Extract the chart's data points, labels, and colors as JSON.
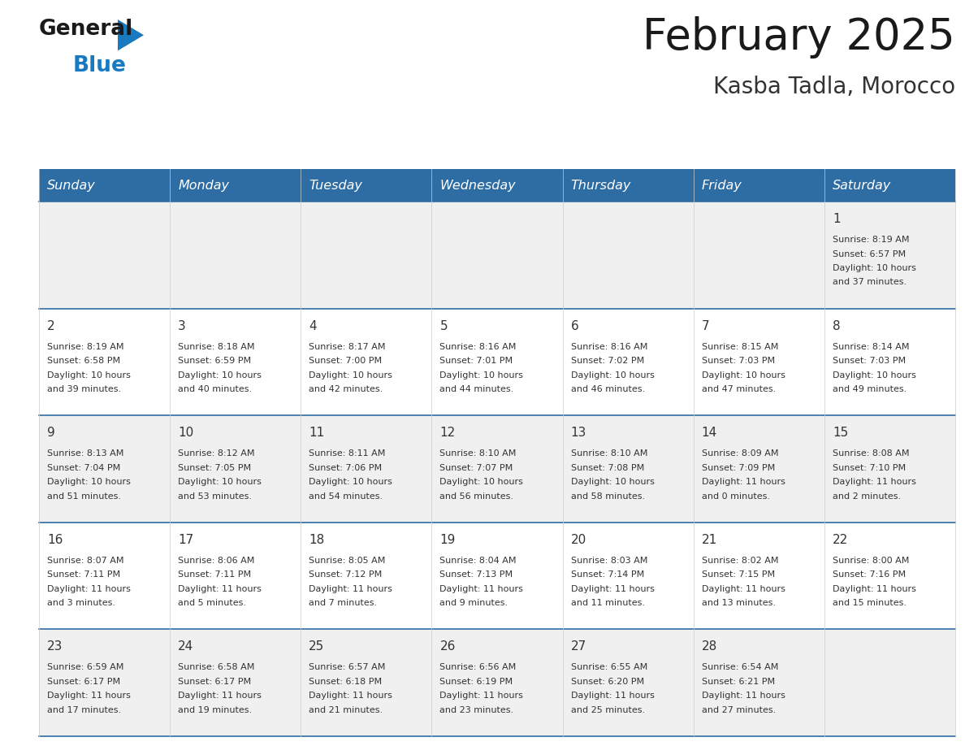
{
  "title": "February 2025",
  "subtitle": "Kasba Tadla, Morocco",
  "days_of_week": [
    "Sunday",
    "Monday",
    "Tuesday",
    "Wednesday",
    "Thursday",
    "Friday",
    "Saturday"
  ],
  "header_bg": "#2e6da4",
  "header_text_color": "#ffffff",
  "cell_bg_light": "#f0f0f0",
  "cell_bg_white": "#ffffff",
  "divider_color": "#2e6da4",
  "grid_color": "#cccccc",
  "text_color": "#333333",
  "title_color": "#1a1a1a",
  "subtitle_color": "#333333",
  "logo_general_color": "#1a1a1a",
  "logo_blue_color": "#1a7abf",
  "calendar_data": [
    {
      "day": 1,
      "col": 6,
      "row": 0,
      "sunrise": "8:19 AM",
      "sunset": "6:57 PM",
      "daylight_hours": 10,
      "daylight_minutes": 37
    },
    {
      "day": 2,
      "col": 0,
      "row": 1,
      "sunrise": "8:19 AM",
      "sunset": "6:58 PM",
      "daylight_hours": 10,
      "daylight_minutes": 39
    },
    {
      "day": 3,
      "col": 1,
      "row": 1,
      "sunrise": "8:18 AM",
      "sunset": "6:59 PM",
      "daylight_hours": 10,
      "daylight_minutes": 40
    },
    {
      "day": 4,
      "col": 2,
      "row": 1,
      "sunrise": "8:17 AM",
      "sunset": "7:00 PM",
      "daylight_hours": 10,
      "daylight_minutes": 42
    },
    {
      "day": 5,
      "col": 3,
      "row": 1,
      "sunrise": "8:16 AM",
      "sunset": "7:01 PM",
      "daylight_hours": 10,
      "daylight_minutes": 44
    },
    {
      "day": 6,
      "col": 4,
      "row": 1,
      "sunrise": "8:16 AM",
      "sunset": "7:02 PM",
      "daylight_hours": 10,
      "daylight_minutes": 46
    },
    {
      "day": 7,
      "col": 5,
      "row": 1,
      "sunrise": "8:15 AM",
      "sunset": "7:03 PM",
      "daylight_hours": 10,
      "daylight_minutes": 47
    },
    {
      "day": 8,
      "col": 6,
      "row": 1,
      "sunrise": "8:14 AM",
      "sunset": "7:03 PM",
      "daylight_hours": 10,
      "daylight_minutes": 49
    },
    {
      "day": 9,
      "col": 0,
      "row": 2,
      "sunrise": "8:13 AM",
      "sunset": "7:04 PM",
      "daylight_hours": 10,
      "daylight_minutes": 51
    },
    {
      "day": 10,
      "col": 1,
      "row": 2,
      "sunrise": "8:12 AM",
      "sunset": "7:05 PM",
      "daylight_hours": 10,
      "daylight_minutes": 53
    },
    {
      "day": 11,
      "col": 2,
      "row": 2,
      "sunrise": "8:11 AM",
      "sunset": "7:06 PM",
      "daylight_hours": 10,
      "daylight_minutes": 54
    },
    {
      "day": 12,
      "col": 3,
      "row": 2,
      "sunrise": "8:10 AM",
      "sunset": "7:07 PM",
      "daylight_hours": 10,
      "daylight_minutes": 56
    },
    {
      "day": 13,
      "col": 4,
      "row": 2,
      "sunrise": "8:10 AM",
      "sunset": "7:08 PM",
      "daylight_hours": 10,
      "daylight_minutes": 58
    },
    {
      "day": 14,
      "col": 5,
      "row": 2,
      "sunrise": "8:09 AM",
      "sunset": "7:09 PM",
      "daylight_hours": 11,
      "daylight_minutes": 0
    },
    {
      "day": 15,
      "col": 6,
      "row": 2,
      "sunrise": "8:08 AM",
      "sunset": "7:10 PM",
      "daylight_hours": 11,
      "daylight_minutes": 2
    },
    {
      "day": 16,
      "col": 0,
      "row": 3,
      "sunrise": "8:07 AM",
      "sunset": "7:11 PM",
      "daylight_hours": 11,
      "daylight_minutes": 3
    },
    {
      "day": 17,
      "col": 1,
      "row": 3,
      "sunrise": "8:06 AM",
      "sunset": "7:11 PM",
      "daylight_hours": 11,
      "daylight_minutes": 5
    },
    {
      "day": 18,
      "col": 2,
      "row": 3,
      "sunrise": "8:05 AM",
      "sunset": "7:12 PM",
      "daylight_hours": 11,
      "daylight_minutes": 7
    },
    {
      "day": 19,
      "col": 3,
      "row": 3,
      "sunrise": "8:04 AM",
      "sunset": "7:13 PM",
      "daylight_hours": 11,
      "daylight_minutes": 9
    },
    {
      "day": 20,
      "col": 4,
      "row": 3,
      "sunrise": "8:03 AM",
      "sunset": "7:14 PM",
      "daylight_hours": 11,
      "daylight_minutes": 11
    },
    {
      "day": 21,
      "col": 5,
      "row": 3,
      "sunrise": "8:02 AM",
      "sunset": "7:15 PM",
      "daylight_hours": 11,
      "daylight_minutes": 13
    },
    {
      "day": 22,
      "col": 6,
      "row": 3,
      "sunrise": "8:00 AM",
      "sunset": "7:16 PM",
      "daylight_hours": 11,
      "daylight_minutes": 15
    },
    {
      "day": 23,
      "col": 0,
      "row": 4,
      "sunrise": "6:59 AM",
      "sunset": "6:17 PM",
      "daylight_hours": 11,
      "daylight_minutes": 17
    },
    {
      "day": 24,
      "col": 1,
      "row": 4,
      "sunrise": "6:58 AM",
      "sunset": "6:17 PM",
      "daylight_hours": 11,
      "daylight_minutes": 19
    },
    {
      "day": 25,
      "col": 2,
      "row": 4,
      "sunrise": "6:57 AM",
      "sunset": "6:18 PM",
      "daylight_hours": 11,
      "daylight_minutes": 21
    },
    {
      "day": 26,
      "col": 3,
      "row": 4,
      "sunrise": "6:56 AM",
      "sunset": "6:19 PM",
      "daylight_hours": 11,
      "daylight_minutes": 23
    },
    {
      "day": 27,
      "col": 4,
      "row": 4,
      "sunrise": "6:55 AM",
      "sunset": "6:20 PM",
      "daylight_hours": 11,
      "daylight_minutes": 25
    },
    {
      "day": 28,
      "col": 5,
      "row": 4,
      "sunrise": "6:54 AM",
      "sunset": "6:21 PM",
      "daylight_hours": 11,
      "daylight_minutes": 27
    }
  ]
}
